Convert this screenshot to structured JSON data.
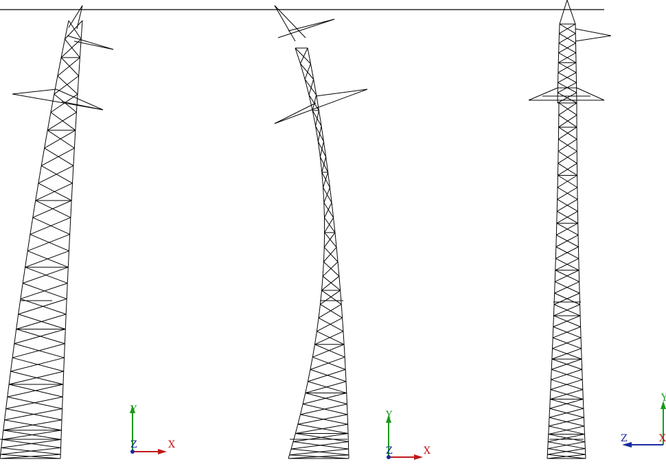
{
  "triads": [
    {
      "labels": [
        "Y",
        "Z",
        "X"
      ]
    },
    {
      "labels": [
        "Y",
        "Z",
        "X"
      ]
    },
    {
      "labels": [
        "Y",
        "Z",
        "X"
      ]
    }
  ]
}
